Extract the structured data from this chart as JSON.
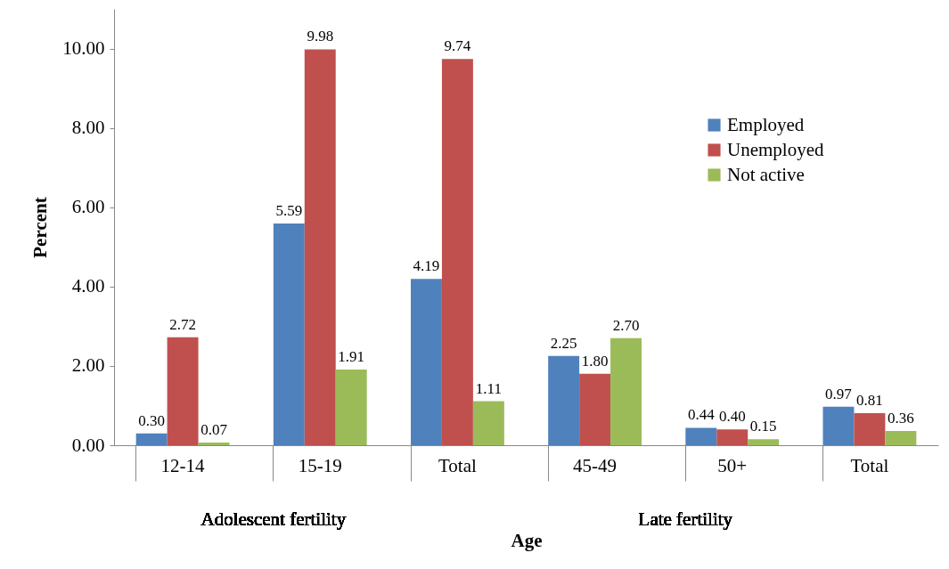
{
  "chart_data": {
    "type": "bar",
    "xlabel": "Age",
    "ylabel": "Percent",
    "categories": [
      "12-14",
      "15-19",
      "Total",
      "45-49",
      "50+",
      "Total"
    ],
    "series": [
      {
        "name": "Employed",
        "color": "#4f81bd",
        "values": [
          0.3,
          5.59,
          4.19,
          2.25,
          0.44,
          0.97
        ],
        "value_labels": [
          "0.30",
          "5.59",
          "4.19",
          "2.25",
          "0.44",
          "0.97"
        ]
      },
      {
        "name": "Unemployed",
        "color": "#c0504d",
        "values": [
          2.72,
          9.98,
          9.74,
          1.8,
          0.4,
          0.81
        ],
        "value_labels": [
          "2.72",
          "9.98",
          "9.74",
          "1.80",
          "0.40",
          "0.81"
        ]
      },
      {
        "name": "Not active",
        "color": "#9bbb59",
        "values": [
          0.07,
          1.91,
          1.11,
          2.7,
          0.15,
          0.36
        ],
        "value_labels": [
          "0.07",
          "1.91",
          "1.11",
          "2.70",
          "0.15",
          "0.36"
        ]
      }
    ],
    "ylim": [
      0,
      11
    ],
    "yticks": [
      {
        "value": 0,
        "label": "0.00"
      },
      {
        "value": 2,
        "label": "2.00"
      },
      {
        "value": 4,
        "label": "4.00"
      },
      {
        "value": 6,
        "label": "6.00"
      },
      {
        "value": 8,
        "label": "8.00"
      },
      {
        "value": 10,
        "label": "10.00"
      }
    ],
    "annotations": [
      "Adolescent fertility",
      "Late fertility"
    ],
    "legend": "top right",
    "grid": false
  }
}
